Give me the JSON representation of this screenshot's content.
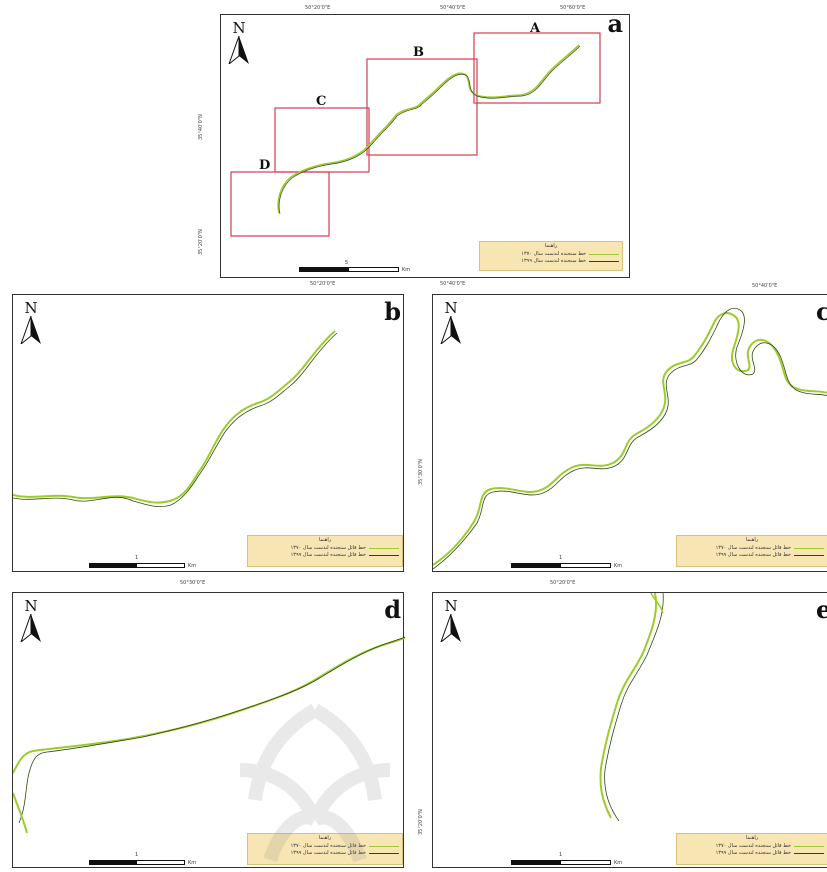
{
  "panels": {
    "a": {
      "label": "a",
      "north": "N",
      "boxes": [
        {
          "id": "A",
          "label": "A"
        },
        {
          "id": "B",
          "label": "B"
        },
        {
          "id": "C",
          "label": "C"
        },
        {
          "id": "D",
          "label": "D"
        }
      ],
      "top_coords": [
        "50°20'0\"E",
        "50°40'0\"E",
        "50°60'0\"E"
      ],
      "bottom_coords": [
        "50°20'0\"E",
        "50°40'0\"E"
      ],
      "left_coords": [
        "35°40'0\"N",
        "35°20'0\"N"
      ],
      "scale_mid": "5",
      "scale_unit": "Km",
      "legend": {
        "title": "راهنما",
        "rows": [
          "خط سنجنده لندست سال ۱۳۷۰",
          "خط سنجنده لندست سال ۱۳۹۹"
        ]
      }
    },
    "b": {
      "label": "b",
      "north": "N",
      "scale_mid": "1",
      "scale_unit": "Km",
      "legend": {
        "title": "راهنما",
        "rows": [
          "خط قائل سنجنده لندست سال ۱۳۷۰",
          "خط قائل سنجنده لندست سال ۱۳۹۹"
        ]
      }
    },
    "c": {
      "label": "c",
      "north": "N",
      "top_coord": "50°40'0\"E",
      "left_coord": "35°30'0\"N",
      "scale_mid": "1",
      "scale_unit": "Km",
      "legend": {
        "title": "راهنما",
        "rows": [
          "خط قائل سنجنده لندست سال ۱۳۷۰",
          "خط قائل سنجنده لندست سال ۱۳۹۹"
        ]
      }
    },
    "d": {
      "label": "d",
      "north": "N",
      "top_coord": "50°30'0\"E",
      "scale_mid": "1",
      "scale_unit": "Km",
      "legend": {
        "title": "راهنما",
        "rows": [
          "خط قائل سنجنده لندست سال ۱۳۷۰",
          "خط قائل سنجنده لندست سال ۱۳۹۹"
        ]
      }
    },
    "e": {
      "label": "e",
      "north": "N",
      "top_coord": "50°20'0\"E",
      "left_coord": "35°20'0\"N",
      "scale_mid": "1",
      "scale_unit": "Km",
      "legend": {
        "title": "راهنما",
        "rows": [
          "خط قائل سنجنده لندست سال ۱۳۷۰",
          "خط قائل سنجنده لندست سال ۱۳۹۹"
        ]
      }
    }
  },
  "colors": {
    "river_1": "#9ccc2a",
    "river_2": "#2e4a12",
    "box": "#d04050",
    "legend_bg": "#f7e6b4"
  }
}
